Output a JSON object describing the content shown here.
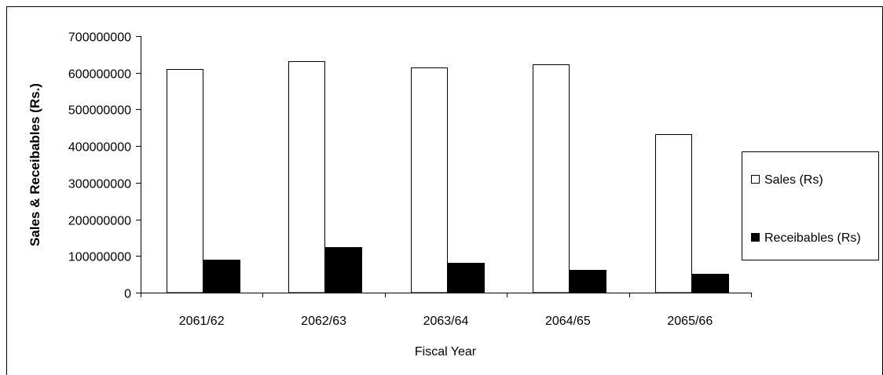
{
  "chart_data": {
    "type": "bar",
    "title": "",
    "xlabel": "Fiscal Year",
    "ylabel": "Sales & Receibables (Rs.)",
    "categories": [
      "2061/62",
      "2062/63",
      "2063/64",
      "2064/65",
      "2065/66"
    ],
    "series": [
      {
        "name": "Sales (Rs)",
        "values": [
          610000000,
          632000000,
          614000000,
          622000000,
          432000000
        ],
        "color": "#ffffff"
      },
      {
        "name": "Receibables (Rs)",
        "values": [
          89000000,
          125000000,
          82000000,
          63000000,
          52000000
        ],
        "color": "#000000"
      }
    ],
    "ylim": [
      0,
      700000000
    ],
    "yticks": [
      "0",
      "100000000",
      "200000000",
      "300000000",
      "400000000",
      "500000000",
      "600000000",
      "700000000"
    ],
    "grid": false,
    "legend": "right"
  }
}
